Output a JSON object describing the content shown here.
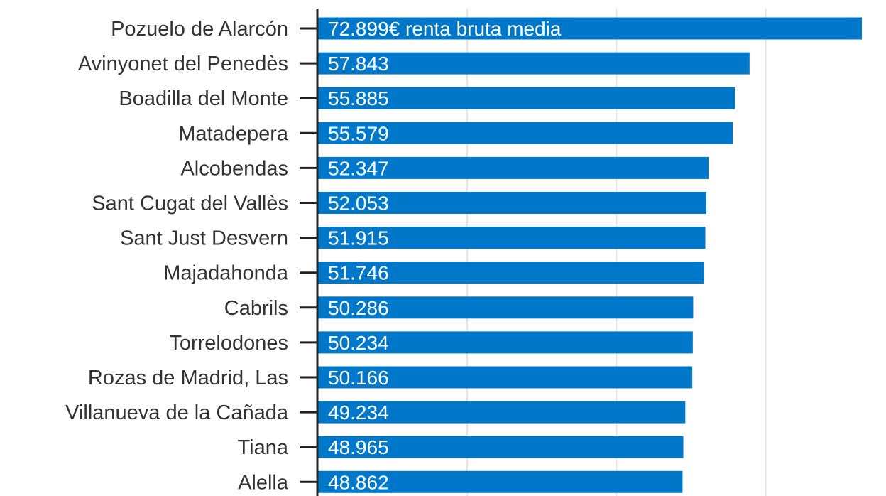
{
  "chart_data": {
    "type": "bar",
    "orientation": "horizontal",
    "title": "",
    "xlabel": "",
    "ylabel": "",
    "categories": [
      "Pozuelo de Alarcón",
      "Avinyonet del Penedès",
      "Boadilla del Monte",
      "Matadepera",
      "Alcobendas",
      "Sant Cugat del Vallès",
      "Sant Just Desvern",
      "Majadahonda",
      "Cabrils",
      "Torrelodones",
      "Rozas de Madrid, Las",
      "Villanueva de la Cañada",
      "Tiana",
      "Alella"
    ],
    "values": [
      72899,
      57843,
      55885,
      55579,
      52347,
      52053,
      51915,
      51746,
      50286,
      50234,
      50166,
      49234,
      48965,
      48862
    ],
    "value_labels": [
      "72.899€ renta bruta media",
      "57.843",
      "55.885",
      "55.579",
      "52.347",
      "52.053",
      "51.915",
      "51.746",
      "50.286",
      "50.234",
      "50.166",
      "49.234",
      "48.965",
      "48.862"
    ],
    "xlim": [
      0,
      72899
    ],
    "gridlines_x": [
      20000,
      40000,
      60000
    ],
    "grid": true,
    "bar_color": "#0077c8"
  }
}
